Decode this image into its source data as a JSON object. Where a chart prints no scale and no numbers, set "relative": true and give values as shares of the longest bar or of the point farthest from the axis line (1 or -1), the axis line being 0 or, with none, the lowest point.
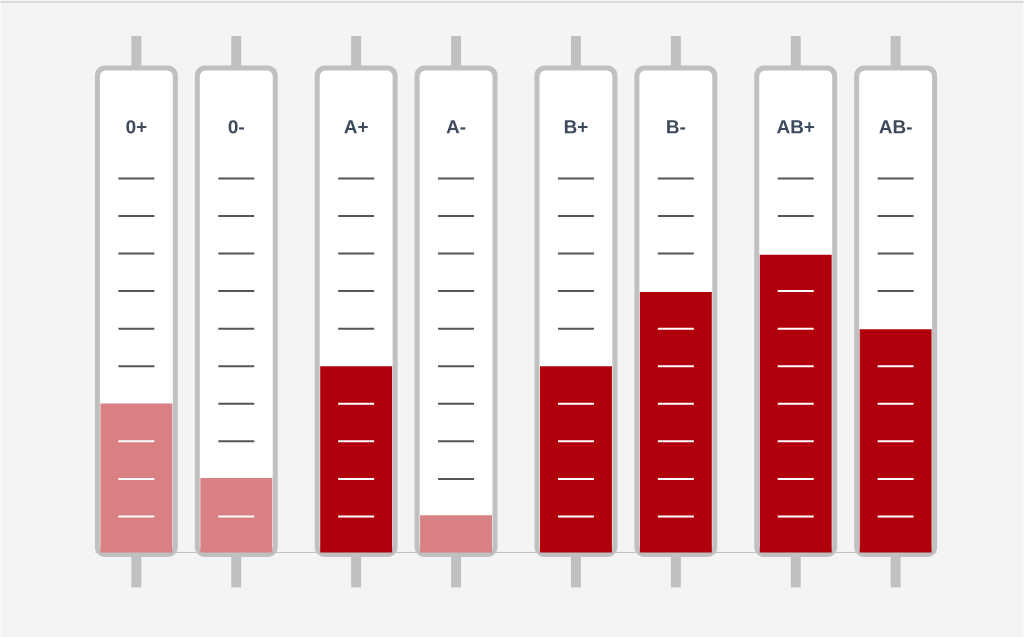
{
  "chart_data": {
    "type": "bar",
    "relative": true,
    "categories": [
      "0+",
      "0-",
      "A+",
      "A-",
      "B+",
      "B-",
      "AB+",
      "AB-"
    ],
    "values": [
      0.5,
      0.25,
      0.625,
      0.125,
      0.625,
      0.875,
      1,
      0.75
    ],
    "colors": [
      "#d98084",
      "#d98084",
      "#b0000b",
      "#d98084",
      "#b0000b",
      "#b0000b",
      "#b0000b",
      "#b0000b"
    ]
  }
}
